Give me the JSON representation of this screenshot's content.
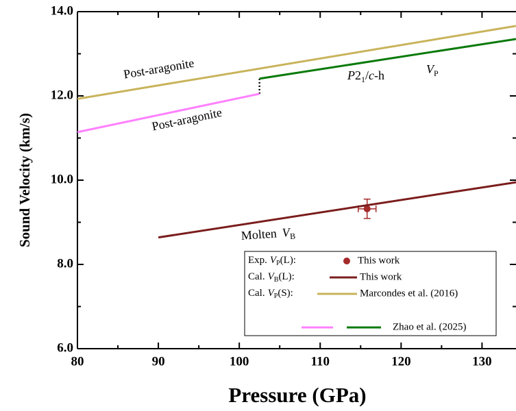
{
  "chart_data": {
    "type": "line",
    "xlabel": "Pressure (GPa)",
    "ylabel": "Sound Velocity (km/s)",
    "xlim": [
      80,
      134.2
    ],
    "ylim": [
      6,
      14
    ],
    "xticks": [
      80,
      90,
      100,
      110,
      120,
      130
    ],
    "yticks": [
      {
        "value": 6,
        "label": "6.0"
      },
      {
        "value": 8,
        "label": "8.0"
      },
      {
        "value": 10,
        "label": "10.0"
      },
      {
        "value": 12,
        "label": "12.0"
      },
      {
        "value": 14,
        "label": "14.0"
      }
    ],
    "series": [
      {
        "name": "This work",
        "color": "#a52a2a",
        "type": "point",
        "x": [
          115.8
        ],
        "values": [
          9.32
        ],
        "xerr": [
          1.1
        ],
        "yerr": [
          0.23
        ]
      },
      {
        "name": "This work",
        "color": "#7b1c1c",
        "x": [
          90,
          134.2
        ],
        "values": [
          8.64,
          9.95
        ]
      },
      {
        "name": "Marcondes et al. (2016)",
        "color": "#c8b35a",
        "x": [
          80,
          134.2
        ],
        "values": [
          11.93,
          13.66
        ]
      },
      {
        "name": "Zhao et al. (2025)",
        "color": "#ff80ff",
        "x": [
          80,
          102.5
        ],
        "values": [
          11.14,
          12.05
        ]
      },
      {
        "color": "#0a7a0a",
        "x": [
          102.5,
          134.2
        ],
        "values": [
          12.41,
          13.35
        ]
      }
    ],
    "transition": {
      "x": [
        102.5,
        102.5
      ],
      "values": [
        12.05,
        12.41
      ]
    },
    "legend": [
      {
        "prefix": "Exp.",
        "var": "V",
        "sub": "P",
        "suffix": "(L):"
      },
      {
        "prefix": "Cal.",
        "var": "V",
        "sub": "B",
        "suffix": "(L):"
      },
      {
        "prefix": "Cal.",
        "var": "V",
        "sub": "P",
        "suffix": "(S):"
      }
    ],
    "annotations": {
      "gold_phase": "Post-aragonite",
      "pink_phase": "Post-aragonite",
      "hp_phase": [
        "P",
        "2",
        "1",
        "/",
        "c",
        "-h"
      ],
      "hp_velocity": [
        "V",
        "P"
      ],
      "molten": [
        "Molten",
        "V",
        "B"
      ]
    }
  }
}
